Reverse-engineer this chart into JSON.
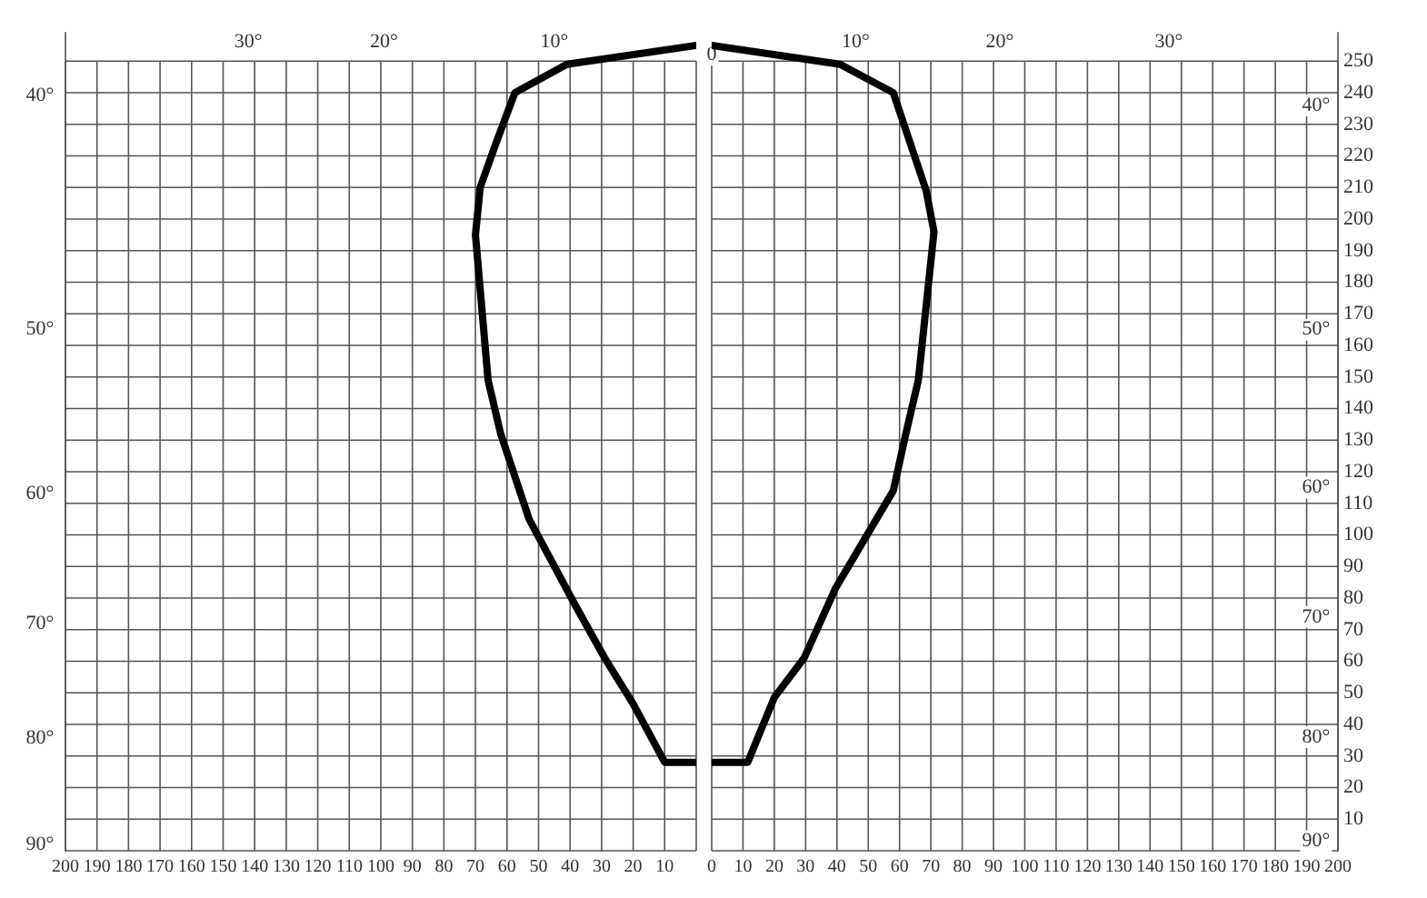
{
  "chart_data": [
    {
      "type": "line",
      "series": [
        {
          "color": "#000000",
          "x": [
            0,
            10,
            20,
            29,
            38.5,
            53,
            62,
            66,
            70,
            68.5,
            63.5,
            57.5,
            41,
            0
          ],
          "values": [
            28,
            28,
            46.5,
            61,
            78,
            105,
            132,
            149,
            195,
            210,
            224,
            240,
            249,
            255
          ]
        }
      ],
      "xlim": [
        200,
        0
      ],
      "xticks": [
        200,
        190,
        180,
        170,
        160,
        150,
        140,
        130,
        120,
        110,
        100,
        90,
        80,
        70,
        60,
        50,
        40,
        30,
        20,
        10,
        {
          "value": 0,
          "label": null
        }
      ],
      "ylim": [
        0,
        259
      ],
      "yticks": [
        0,
        10,
        20,
        30,
        40,
        50,
        60,
        70,
        80,
        90,
        100,
        110,
        120,
        130,
        140,
        150,
        160,
        170,
        180,
        190,
        200,
        210,
        220,
        230,
        240,
        250
      ],
      "tick_labels": "x",
      "annotations": [
        "30°",
        "20°",
        "10°",
        "40°",
        "50°",
        "60°",
        "70°",
        "80°",
        "90°"
      ],
      "grid": true,
      "legend": false,
      "marker": "none",
      "line_style": "solid"
    },
    {
      "type": "line",
      "series": [
        {
          "color": "#000000",
          "x": [
            0,
            41,
            58,
            68.5,
            71,
            66,
            62,
            58,
            39.5,
            29.5,
            20,
            11.5,
            0
          ],
          "values": [
            255,
            249,
            240,
            209,
            196,
            149,
            132,
            114,
            83,
            61,
            48.5,
            28,
            28
          ]
        }
      ],
      "xlim": [
        0,
        200
      ],
      "xticks": [
        0,
        10,
        20,
        30,
        40,
        50,
        60,
        70,
        80,
        90,
        100,
        110,
        120,
        130,
        140,
        150,
        160,
        170,
        180,
        190,
        200
      ],
      "ylim": [
        0,
        259
      ],
      "yticks": [
        {
          "value": 0,
          "label": null
        },
        10,
        20,
        30,
        40,
        50,
        60,
        70,
        80,
        90,
        100,
        110,
        120,
        130,
        140,
        150,
        160,
        170,
        180,
        190,
        200,
        210,
        220,
        230,
        240,
        250
      ],
      "annotations": [
        "0",
        "10°",
        "20°",
        "30°",
        "40°",
        "50°",
        "60°",
        "70°",
        "80°",
        "90°"
      ],
      "grid": true,
      "legend": false,
      "marker": "none",
      "line_style": "solid"
    }
  ]
}
